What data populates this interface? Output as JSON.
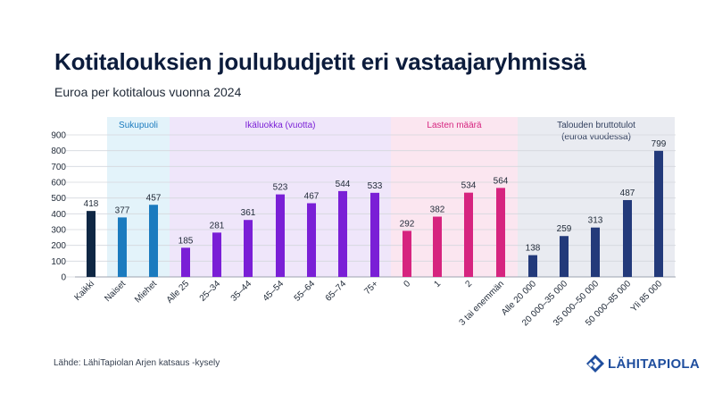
{
  "title": "Kotitalouksien joulubudjetit eri vastaajaryhmissä",
  "subtitle": "Euroa per kotitalous vuonna 2024",
  "source": "Lähde: LähiTapiolan Arjen katsaus -kysely",
  "logo_text": "LÄHITAPIOLA",
  "colors": {
    "kaikki": "#0f2744",
    "sukupuoli": "#1b7bbf",
    "ika": "#7a1fd6",
    "lapset": "#d6247f",
    "tulot": "#233a7a",
    "bg_sukupuoli": "#e3f3fa",
    "bg_ika": "#efe6fa",
    "bg_lapset": "#fbe6f0",
    "bg_tulot": "#e9ebf1",
    "label_sukupuoli": "#1b7bbf",
    "label_ika": "#7a1fd6",
    "label_lapset": "#d6247f",
    "label_tulot": "#33415f",
    "logo": "#1f4e9e"
  },
  "chart_data": {
    "type": "bar",
    "title": "Kotitalouksien joulubudjetit eri vastaajaryhmissä",
    "subtitle": "Euroa per kotitalous vuonna 2024",
    "ylim": [
      0,
      900
    ],
    "yticks": [
      0,
      100,
      200,
      300,
      400,
      500,
      600,
      700,
      800,
      900
    ],
    "groups": [
      {
        "key": "kaikki",
        "label": "",
        "bars": [
          {
            "category": "Kaikki",
            "value": 418
          }
        ]
      },
      {
        "key": "sukupuoli",
        "label": "Sukupuoli",
        "bars": [
          {
            "category": "Naiset",
            "value": 377
          },
          {
            "category": "Miehet",
            "value": 457
          }
        ]
      },
      {
        "key": "ika",
        "label": "Ikäluokka (vuotta)",
        "bars": [
          {
            "category": "Alle 25",
            "value": 185
          },
          {
            "category": "25–34",
            "value": 281
          },
          {
            "category": "35–44",
            "value": 361
          },
          {
            "category": "45–54",
            "value": 523
          },
          {
            "category": "55–64",
            "value": 467
          },
          {
            "category": "65–74",
            "value": 544
          },
          {
            "category": "75+",
            "value": 533
          }
        ]
      },
      {
        "key": "lapset",
        "label": "Lasten määrä",
        "bars": [
          {
            "category": "0",
            "value": 292
          },
          {
            "category": "1",
            "value": 382
          },
          {
            "category": "2",
            "value": 534
          },
          {
            "category": "3 tai enemmän",
            "value": 564
          }
        ]
      },
      {
        "key": "tulot",
        "label": "Talouden bruttotulot",
        "label2": "(euroa vuodessa)",
        "bars": [
          {
            "category": "Alle 20 000",
            "value": 138
          },
          {
            "category": "20 000–35 000",
            "value": 259
          },
          {
            "category": "35 000–50 000",
            "value": 313
          },
          {
            "category": "50 000–85 000",
            "value": 487
          },
          {
            "category": "Yli 85 000",
            "value": 799
          }
        ]
      }
    ]
  }
}
